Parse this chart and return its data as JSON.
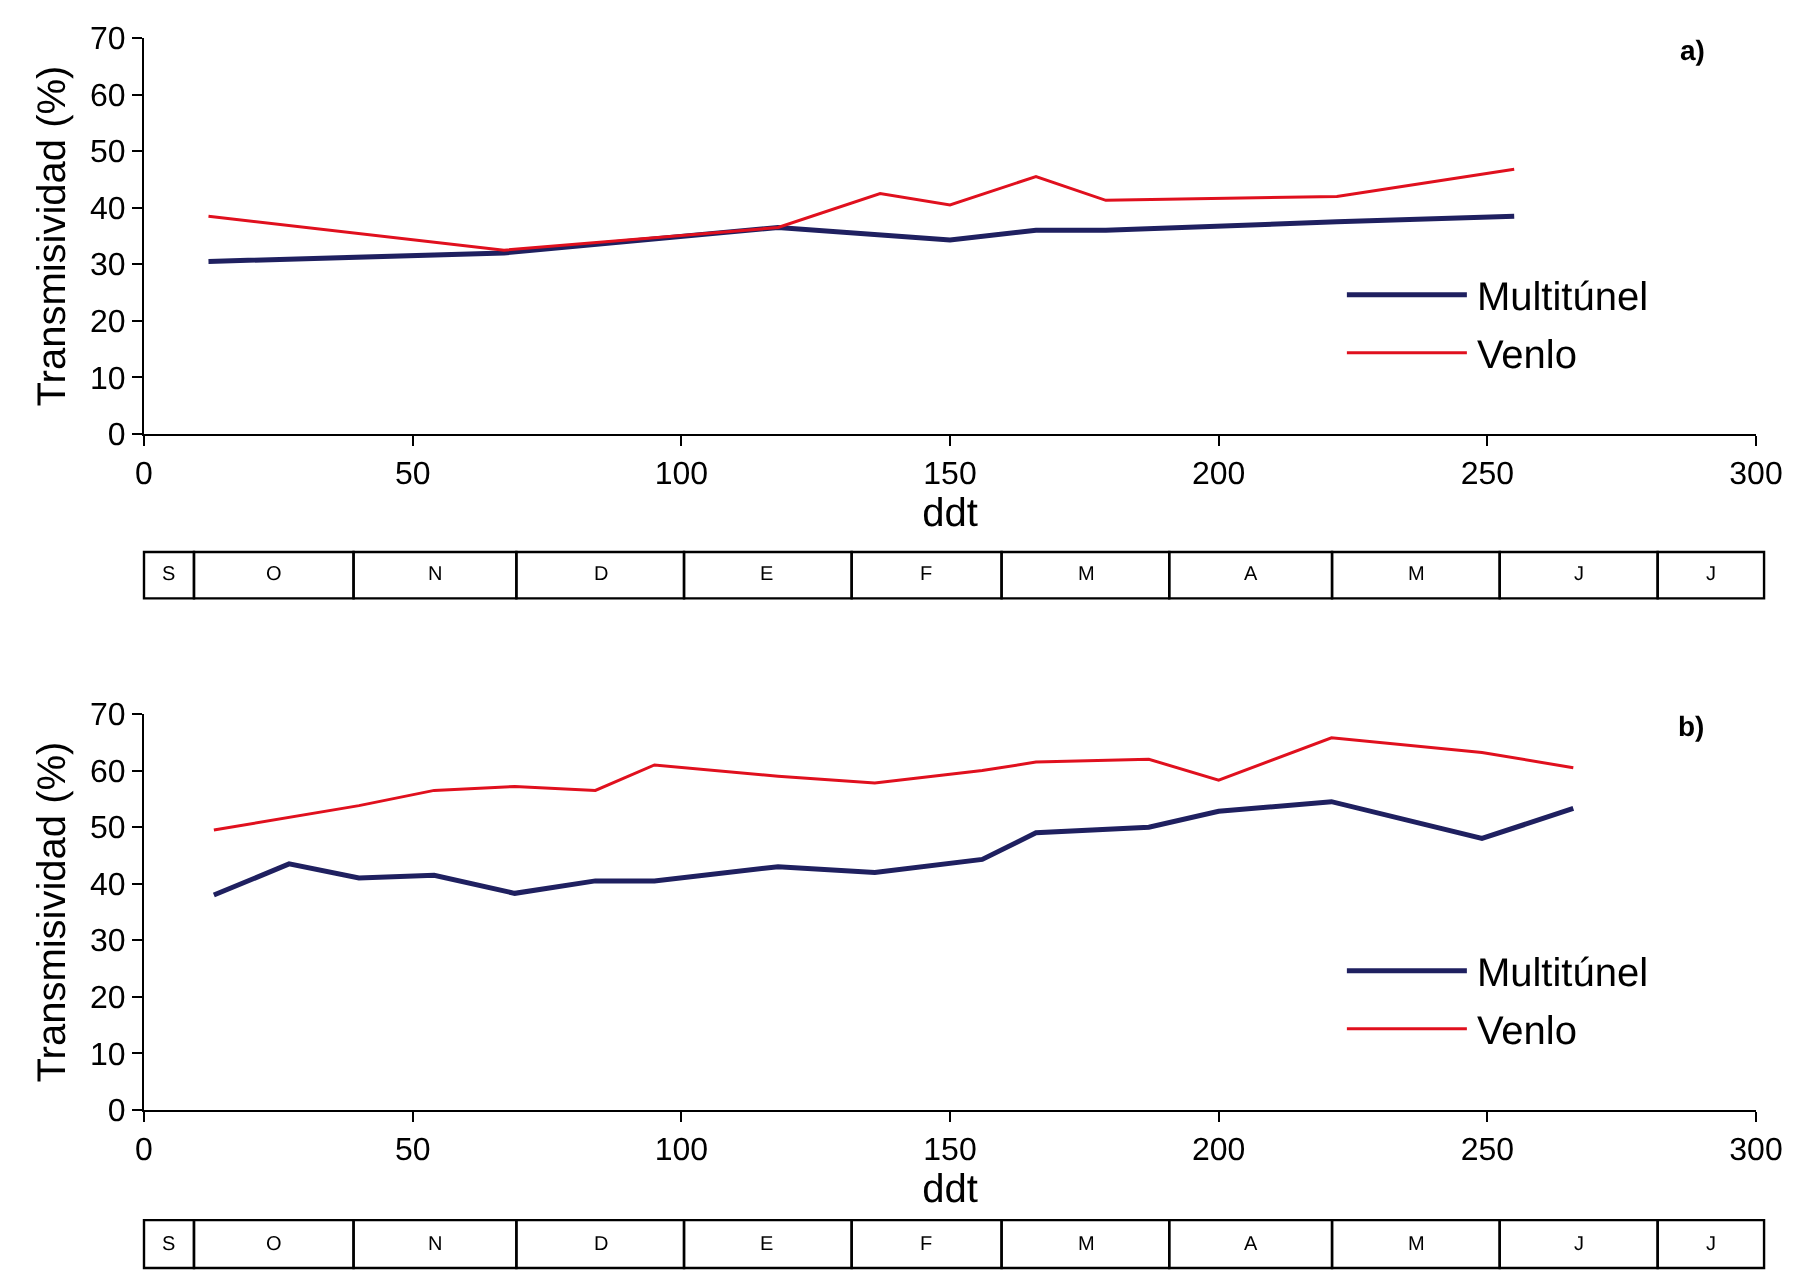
{
  "chart_data": [
    {
      "type": "line",
      "title": "a)",
      "xlabel": "ddt",
      "ylabel": "Transmisividad (%)",
      "xlim": [
        0,
        300
      ],
      "xticks": [
        0,
        50,
        100,
        150,
        200,
        250,
        300
      ],
      "ylim": [
        0,
        70
      ],
      "yticks": [
        0,
        10,
        20,
        30,
        40,
        50,
        60,
        70
      ],
      "grid": false,
      "legend": "right",
      "marker": "none",
      "line_style": "solid",
      "annotations": [
        "S",
        "O",
        "N",
        "D",
        "E",
        "F",
        "M",
        "A",
        "M",
        "J",
        "J"
      ],
      "series": [
        {
          "name": "Multitúnel",
          "color": "#1f2060",
          "x": [
            12,
            67,
            118,
            150,
            166,
            179,
            222,
            255
          ],
          "values": [
            30.5,
            32,
            36.5,
            34.3,
            36,
            36,
            37.5,
            38.5
          ]
        },
        {
          "name": "Venlo",
          "color": "#e0101e",
          "x": [
            12,
            67,
            118,
            137,
            150,
            166,
            179,
            222,
            255
          ],
          "values": [
            38.5,
            32.5,
            36.5,
            42.5,
            40.5,
            45.5,
            41.3,
            42,
            46.8
          ]
        }
      ]
    },
    {
      "type": "line",
      "title": "b)",
      "xlabel": "ddt",
      "ylabel": "Transmisividad (%)",
      "xlim": [
        0,
        300
      ],
      "xticks": [
        0,
        50,
        100,
        150,
        200,
        250,
        300
      ],
      "ylim": [
        0,
        70
      ],
      "yticks": [
        0,
        10,
        20,
        30,
        40,
        50,
        60,
        70
      ],
      "grid": false,
      "legend": "right",
      "marker": "none",
      "line_style": "solid",
      "annotations": [
        "S",
        "O",
        "N",
        "D",
        "E",
        "F",
        "M",
        "A",
        "M",
        "J",
        "J"
      ],
      "series": [
        {
          "name": "Multitúnel",
          "color": "#1f2060",
          "x": [
            13,
            27,
            40,
            54,
            69,
            84,
            95,
            118,
            136,
            156,
            166,
            187,
            200,
            221,
            249,
            266
          ],
          "values": [
            38,
            43.5,
            41,
            41.5,
            38.3,
            40.5,
            40.5,
            43,
            42,
            44.3,
            49,
            50,
            52.8,
            54.5,
            48,
            53.3
          ]
        },
        {
          "name": "Venlo",
          "color": "#e0101e",
          "x": [
            13,
            40,
            54,
            69,
            84,
            95,
            118,
            136,
            156,
            166,
            187,
            200,
            221,
            249,
            266
          ],
          "values": [
            49.5,
            53.8,
            56.5,
            57.2,
            56.5,
            61,
            59,
            57.8,
            60,
            61.5,
            62,
            58.3,
            65.8,
            63.2,
            60.5
          ]
        }
      ]
    }
  ]
}
